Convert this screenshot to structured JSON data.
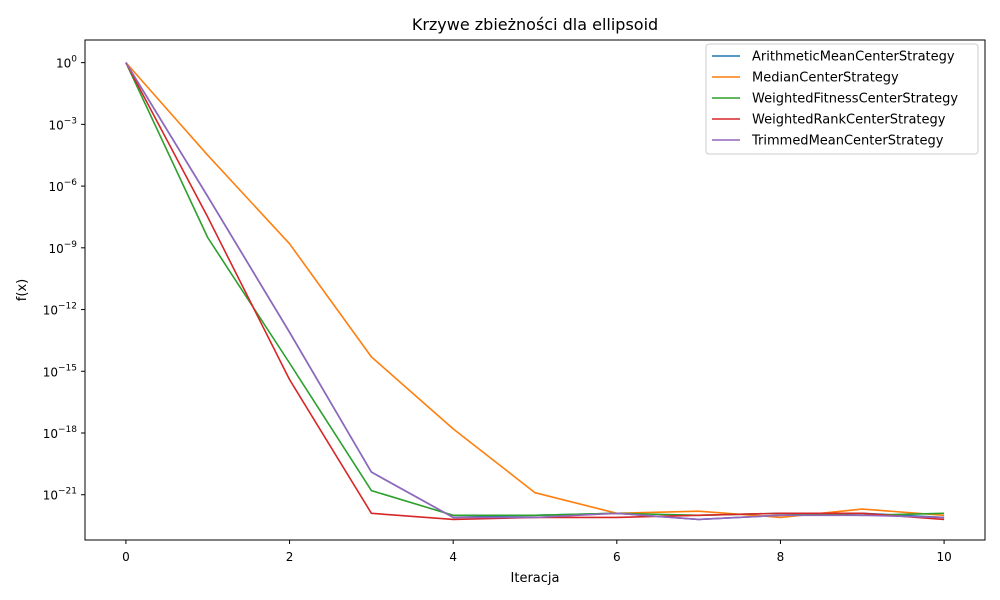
{
  "chart_data": {
    "type": "line",
    "title": "Krzywe zbieżności dla ellipsoid",
    "xlabel": "Iteracja",
    "ylabel": "f(x)",
    "yscale": "log",
    "xlim": [
      -0.5,
      10.5
    ],
    "ylim_log10": [
      -23.2,
      1.1
    ],
    "grid": false,
    "legend_position": "top-right",
    "x": [
      0,
      1,
      2,
      3,
      4,
      5,
      6,
      7,
      8,
      9,
      10
    ],
    "x_ticks": [
      {
        "value": 0,
        "label": "0"
      },
      {
        "value": 2,
        "label": "2"
      },
      {
        "value": 4,
        "label": "4"
      },
      {
        "value": 6,
        "label": "6"
      },
      {
        "value": 8,
        "label": "8"
      },
      {
        "value": 10,
        "label": "10"
      }
    ],
    "y_ticks": [
      {
        "exp": 0,
        "base": "10",
        "sup": "0"
      },
      {
        "exp": -3,
        "base": "10",
        "sup": "−3"
      },
      {
        "exp": -6,
        "base": "10",
        "sup": "−6"
      },
      {
        "exp": -9,
        "base": "10",
        "sup": "−9"
      },
      {
        "exp": -12,
        "base": "10",
        "sup": "−12"
      },
      {
        "exp": -15,
        "base": "10",
        "sup": "−15"
      },
      {
        "exp": -18,
        "base": "10",
        "sup": "−18"
      },
      {
        "exp": -21,
        "base": "10",
        "sup": "−21"
      }
    ],
    "series": [
      {
        "name": "ArithmeticMeanCenterStrategy",
        "color": "#1f77b4",
        "log10_values": [
          0,
          -6.5,
          -13.1,
          -19.9,
          -22.1,
          -22.0,
          -21.9,
          -22.2,
          -22.0,
          -21.9,
          -22.1
        ]
      },
      {
        "name": "MedianCenterStrategy",
        "color": "#ff7f0e",
        "log10_values": [
          0,
          -4.5,
          -8.8,
          -14.3,
          -17.8,
          -20.9,
          -21.9,
          -21.8,
          -22.1,
          -21.7,
          -22.0
        ]
      },
      {
        "name": "WeightedFitnessCenterStrategy",
        "color": "#2ca02c",
        "log10_values": [
          0,
          -8.5,
          -14.6,
          -20.8,
          -22.0,
          -22.0,
          -21.9,
          -22.0,
          -21.9,
          -22.0,
          -21.9
        ]
      },
      {
        "name": "WeightedRankCenterStrategy",
        "color": "#d62728",
        "log10_values": [
          0,
          -7.5,
          -15.4,
          -21.9,
          -22.2,
          -22.1,
          -22.1,
          -22.0,
          -21.9,
          -21.9,
          -22.2
        ]
      },
      {
        "name": "TrimmedMeanCenterStrategy",
        "color": "#9467bd",
        "log10_values": [
          0,
          -6.5,
          -13.1,
          -19.9,
          -22.1,
          -22.1,
          -21.9,
          -22.2,
          -22.0,
          -22.0,
          -22.1
        ]
      }
    ]
  }
}
